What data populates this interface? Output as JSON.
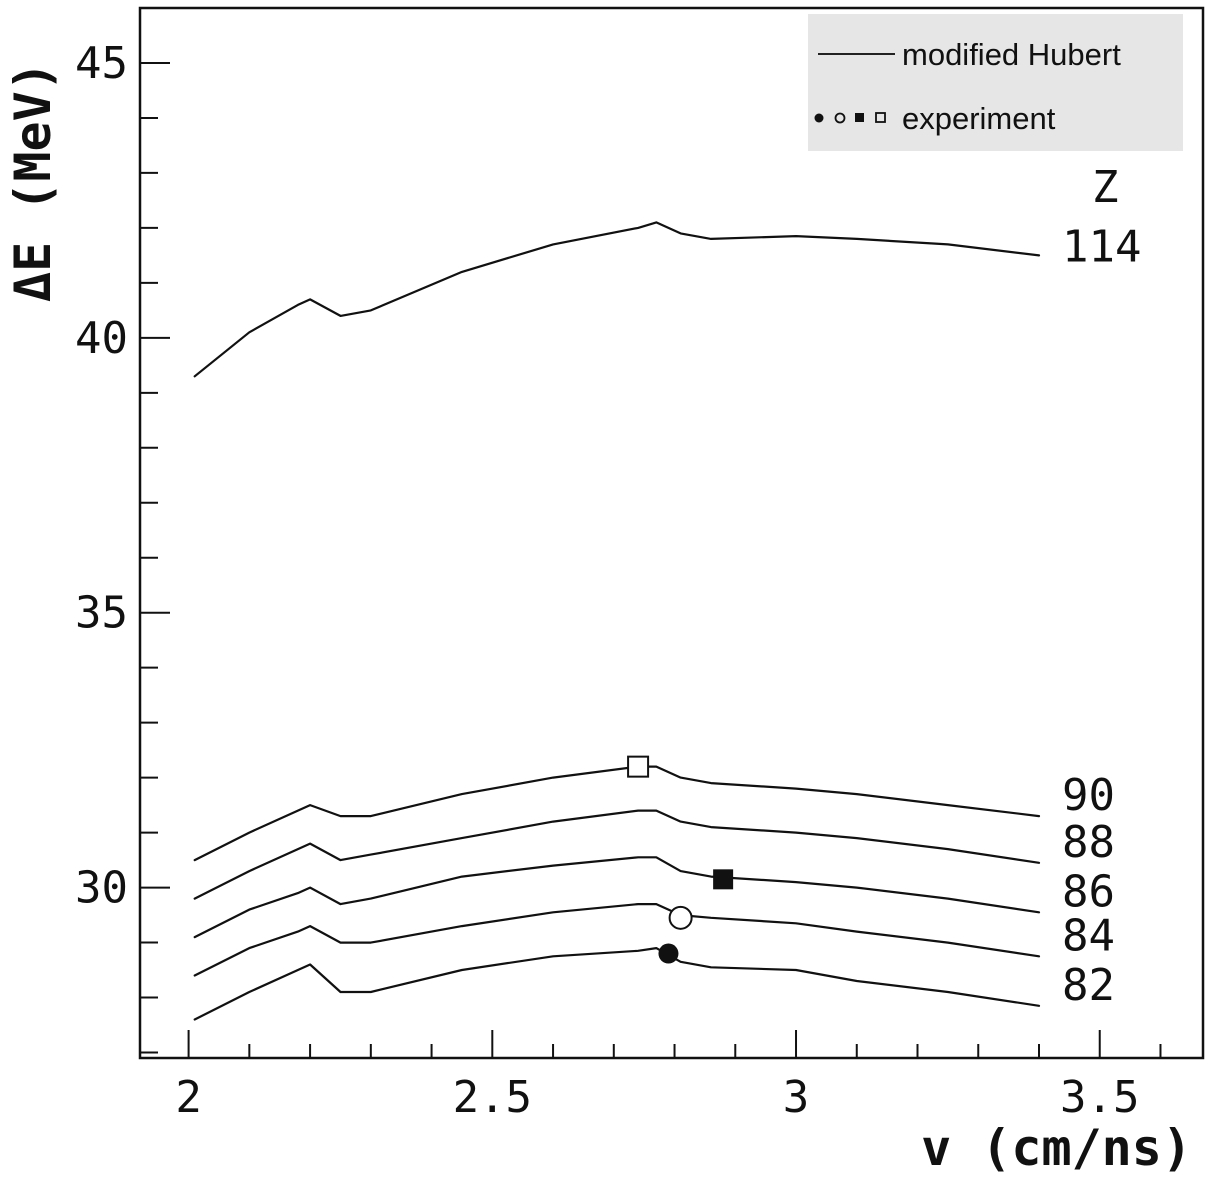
{
  "chart_data": {
    "type": "line",
    "title": "",
    "xlabel": "v (cm/ns)",
    "ylabel": "ΔE (MeV)",
    "xlim": [
      1.92,
      3.67
    ],
    "ylim": [
      26.9,
      46.0
    ],
    "x_major_ticks": [
      2,
      2.5,
      3,
      3.5
    ],
    "x_tick_labels": [
      "2",
      "2.5",
      "3",
      "3.5"
    ],
    "x_minor_step": 0.1,
    "y_major_ticks": [
      30,
      35,
      40,
      45
    ],
    "y_tick_labels": [
      "30",
      "35",
      "40",
      "45"
    ],
    "y_minor_step": 1,
    "grid": false,
    "legend_position": "top-right",
    "legend": [
      {
        "label": "modified Hubert",
        "marker": "line"
      },
      {
        "label": "experiment",
        "marker": "●○■□"
      }
    ],
    "series_label_title": "Z",
    "series": [
      {
        "name": "114",
        "x": [
          2.01,
          2.1,
          2.18,
          2.2,
          2.25,
          2.3,
          2.45,
          2.6,
          2.74,
          2.77,
          2.81,
          2.86,
          3.0,
          3.1,
          3.25,
          3.4
        ],
        "y": [
          39.3,
          40.1,
          40.6,
          40.7,
          40.4,
          40.5,
          41.2,
          41.7,
          42.0,
          42.1,
          41.9,
          41.8,
          41.85,
          41.8,
          41.7,
          41.5
        ]
      },
      {
        "name": "90",
        "x": [
          2.01,
          2.1,
          2.18,
          2.2,
          2.25,
          2.3,
          2.45,
          2.6,
          2.74,
          2.77,
          2.81,
          2.86,
          3.0,
          3.1,
          3.25,
          3.4
        ],
        "y": [
          30.5,
          31.0,
          31.4,
          31.5,
          31.3,
          31.3,
          31.7,
          32.0,
          32.2,
          32.2,
          32.0,
          31.9,
          31.8,
          31.7,
          31.5,
          31.3
        ]
      },
      {
        "name": "88",
        "x": [
          2.01,
          2.1,
          2.18,
          2.2,
          2.25,
          2.3,
          2.45,
          2.6,
          2.74,
          2.77,
          2.81,
          2.86,
          3.0,
          3.1,
          3.25,
          3.4
        ],
        "y": [
          29.8,
          30.3,
          30.7,
          30.8,
          30.5,
          30.6,
          30.9,
          31.2,
          31.4,
          31.4,
          31.2,
          31.1,
          31.0,
          30.9,
          30.7,
          30.45
        ]
      },
      {
        "name": "86",
        "x": [
          2.01,
          2.1,
          2.18,
          2.2,
          2.25,
          2.3,
          2.45,
          2.6,
          2.74,
          2.77,
          2.81,
          2.86,
          3.0,
          3.1,
          3.25,
          3.4
        ],
        "y": [
          29.1,
          29.6,
          29.9,
          30.0,
          29.7,
          29.8,
          30.2,
          30.4,
          30.55,
          30.55,
          30.3,
          30.2,
          30.1,
          30.0,
          29.8,
          29.55
        ]
      },
      {
        "name": "84",
        "x": [
          2.01,
          2.1,
          2.18,
          2.2,
          2.25,
          2.3,
          2.45,
          2.6,
          2.74,
          2.77,
          2.81,
          2.86,
          3.0,
          3.1,
          3.25,
          3.4
        ],
        "y": [
          28.4,
          28.9,
          29.2,
          29.3,
          29.0,
          29.0,
          29.3,
          29.55,
          29.7,
          29.7,
          29.5,
          29.45,
          29.35,
          29.2,
          29.0,
          28.75
        ]
      },
      {
        "name": "82",
        "x": [
          2.01,
          2.1,
          2.18,
          2.2,
          2.25,
          2.3,
          2.45,
          2.6,
          2.74,
          2.77,
          2.81,
          2.86,
          3.0,
          3.1,
          3.25,
          3.4
        ],
        "y": [
          27.6,
          28.1,
          28.5,
          28.6,
          28.1,
          28.1,
          28.5,
          28.75,
          28.85,
          28.9,
          28.65,
          28.55,
          28.5,
          28.3,
          28.1,
          27.85
        ]
      }
    ],
    "experiment_points": [
      {
        "series": "90",
        "x": 2.74,
        "y": 32.2,
        "marker": "open-square"
      },
      {
        "series": "86",
        "x": 2.88,
        "y": 30.15,
        "marker": "filled-square"
      },
      {
        "series": "84",
        "x": 2.81,
        "y": 29.45,
        "marker": "open-circle"
      },
      {
        "series": "82",
        "x": 2.79,
        "y": 28.8,
        "marker": "filled-circle"
      }
    ]
  }
}
